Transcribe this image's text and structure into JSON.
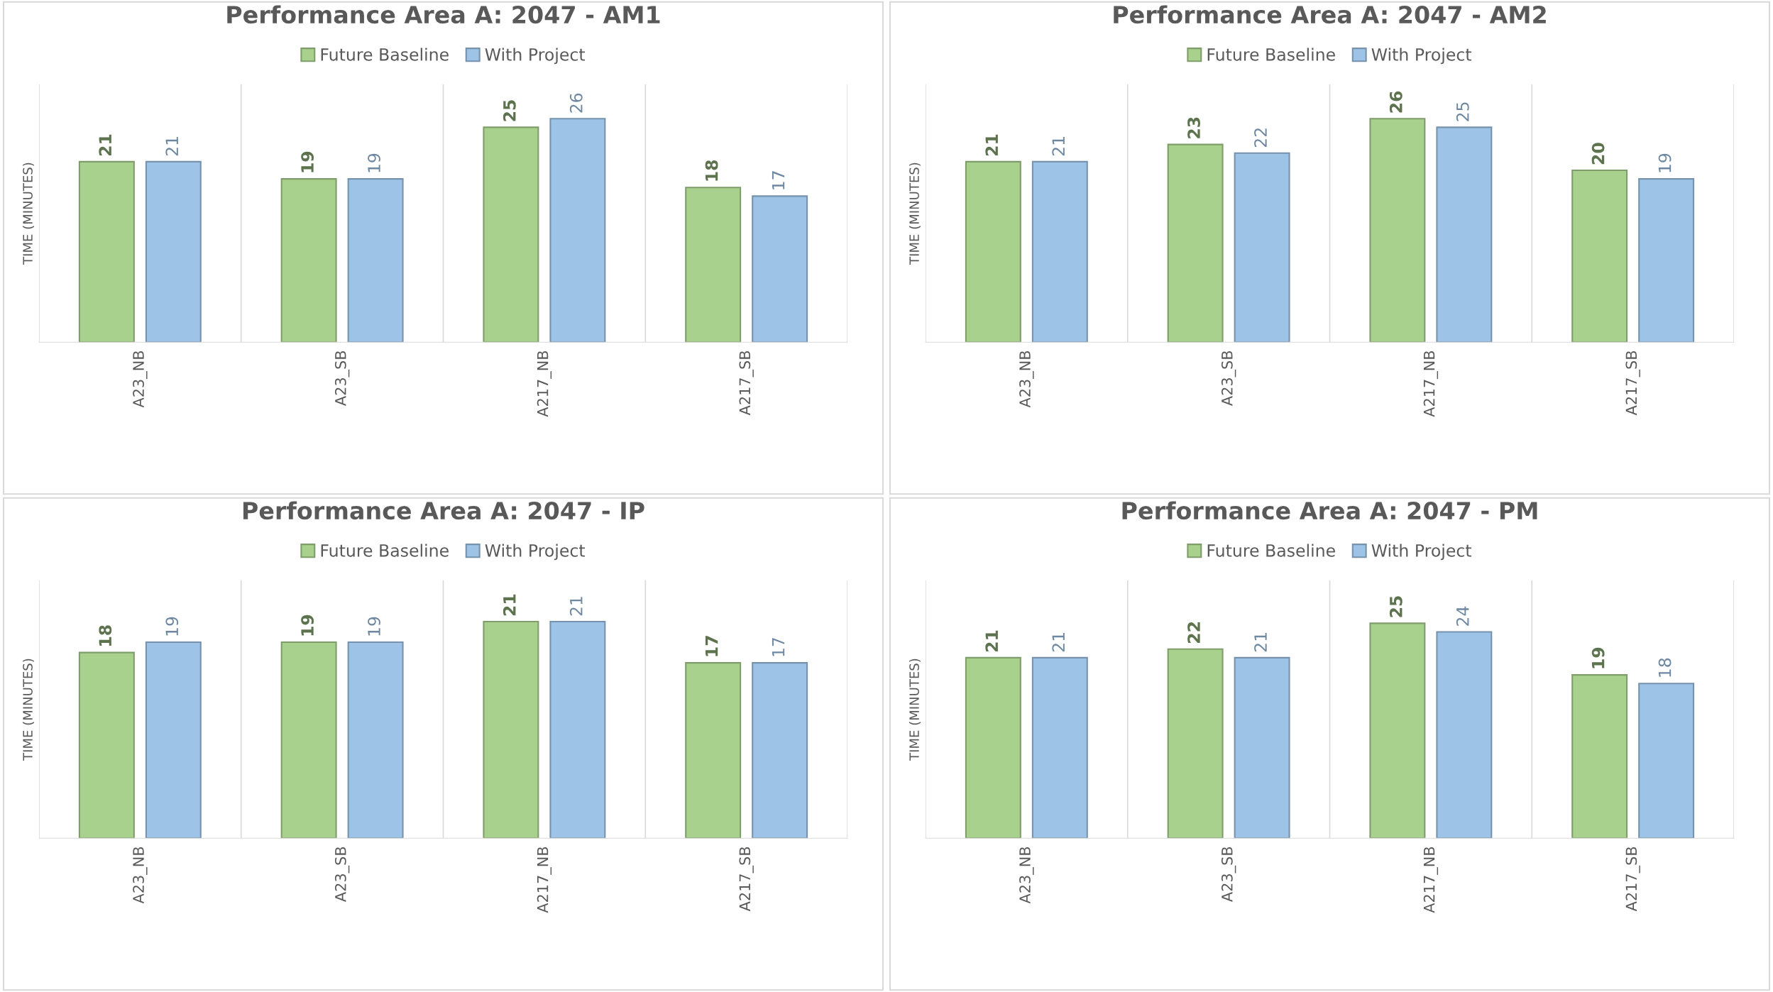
{
  "chart_data": [
    {
      "type": "bar",
      "title": "Performance Area A: 2047 - AM1",
      "ylabel": "TIME (MINUTES)",
      "categories": [
        "A23_NB",
        "A23_SB",
        "A217_NB",
        "A217_SB"
      ],
      "series": [
        {
          "name": "Future Baseline",
          "color": "#a9d18e",
          "values": [
            21,
            19,
            25,
            18
          ]
        },
        {
          "name": "With Project",
          "color": "#9dc3e6",
          "values": [
            21,
            19,
            26,
            17
          ]
        }
      ],
      "ylim": [
        0,
        30
      ],
      "data_labels": true,
      "legend": "top",
      "grid": "x",
      "tick_labels": "x"
    },
    {
      "type": "bar",
      "title": "Performance Area A: 2047 - AM2",
      "ylabel": "TIME (MINUTES)",
      "categories": [
        "A23_NB",
        "A23_SB",
        "A217_NB",
        "A217_SB"
      ],
      "series": [
        {
          "name": "Future Baseline",
          "color": "#a9d18e",
          "values": [
            21,
            23,
            26,
            20
          ]
        },
        {
          "name": "With Project",
          "color": "#9dc3e6",
          "values": [
            21,
            22,
            25,
            19
          ]
        }
      ],
      "ylim": [
        0,
        30
      ],
      "data_labels": true,
      "legend": "top",
      "grid": "x",
      "tick_labels": "x"
    },
    {
      "type": "bar",
      "title": "Performance Area A: 2047 - IP",
      "ylabel": "TIME (MINUTES)",
      "categories": [
        "A23_NB",
        "A23_SB",
        "A217_NB",
        "A217_SB"
      ],
      "series": [
        {
          "name": "Future Baseline",
          "color": "#a9d18e",
          "values": [
            18,
            19,
            21,
            17
          ]
        },
        {
          "name": "With Project",
          "color": "#9dc3e6",
          "values": [
            19,
            19,
            21,
            17
          ]
        }
      ],
      "ylim": [
        0,
        25
      ],
      "data_labels": true,
      "legend": "top",
      "grid": "x",
      "tick_labels": "x"
    },
    {
      "type": "bar",
      "title": "Performance Area A: 2047 - PM",
      "ylabel": "TIME (MINUTES)",
      "categories": [
        "A23_NB",
        "A23_SB",
        "A217_NB",
        "A217_SB"
      ],
      "series": [
        {
          "name": "Future Baseline",
          "color": "#a9d18e",
          "values": [
            21,
            22,
            25,
            19
          ]
        },
        {
          "name": "With Project",
          "color": "#9dc3e6",
          "values": [
            21,
            21,
            24,
            18
          ]
        }
      ],
      "ylim": [
        0,
        30
      ],
      "data_labels": true,
      "legend": "top",
      "grid": "x",
      "tick_labels": "x"
    }
  ]
}
